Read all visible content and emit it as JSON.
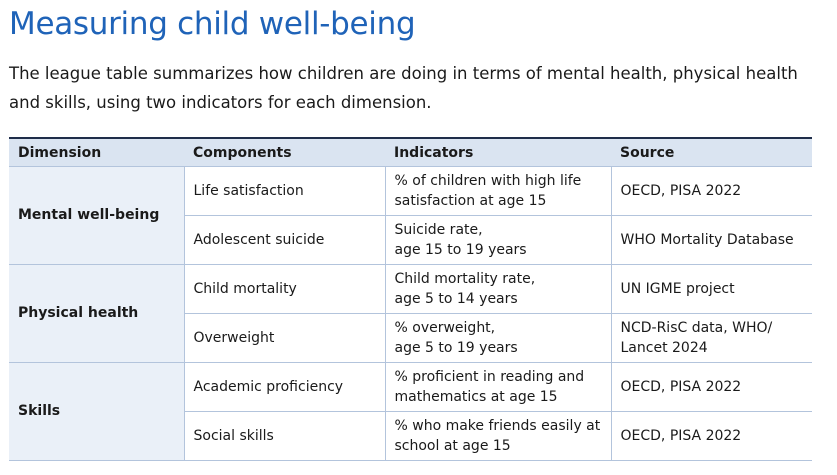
{
  "title": "Measuring child well-being",
  "intro": "The league table summarizes how children are doing in terms of mental health, physical health and skills, using two indicators for each dimension.",
  "table": {
    "headers": [
      "Dimension",
      "Components",
      "Indicators",
      "Source"
    ],
    "groups": [
      {
        "dimension": "Mental well-being",
        "rows": [
          {
            "component": "Life satisfaction",
            "indicator_l1": "% of children with high life",
            "indicator_l2": "satisfaction at age 15",
            "source_l1": "OECD, PISA 2022",
            "source_l2": ""
          },
          {
            "component": "Adolescent suicide",
            "indicator_l1": "Suicide rate,",
            "indicator_l2": "age 15 to 19 years",
            "source_l1": "WHO Mortality Database",
            "source_l2": ""
          }
        ]
      },
      {
        "dimension": "Physical health",
        "rows": [
          {
            "component": "Child mortality",
            "indicator_l1": "Child mortality rate,",
            "indicator_l2": "age 5 to 14 years",
            "source_l1": "UN IGME project",
            "source_l2": ""
          },
          {
            "component": "Overweight",
            "indicator_l1": "% overweight,",
            "indicator_l2": "age 5 to 19 years",
            "source_l1": "NCD-RisC data, WHO/",
            "source_l2": "Lancet 2024"
          }
        ]
      },
      {
        "dimension": "Skills",
        "rows": [
          {
            "component": "Academic proficiency",
            "indicator_l1": "% proficient in reading and",
            "indicator_l2": "mathematics at age 15",
            "source_l1": "OECD, PISA 2022",
            "source_l2": ""
          },
          {
            "component": "Social skills",
            "indicator_l1": "% who make friends easily at",
            "indicator_l2": "school at age 15",
            "source_l1": "OECD, PISA 2022",
            "source_l2": ""
          }
        ]
      }
    ]
  }
}
